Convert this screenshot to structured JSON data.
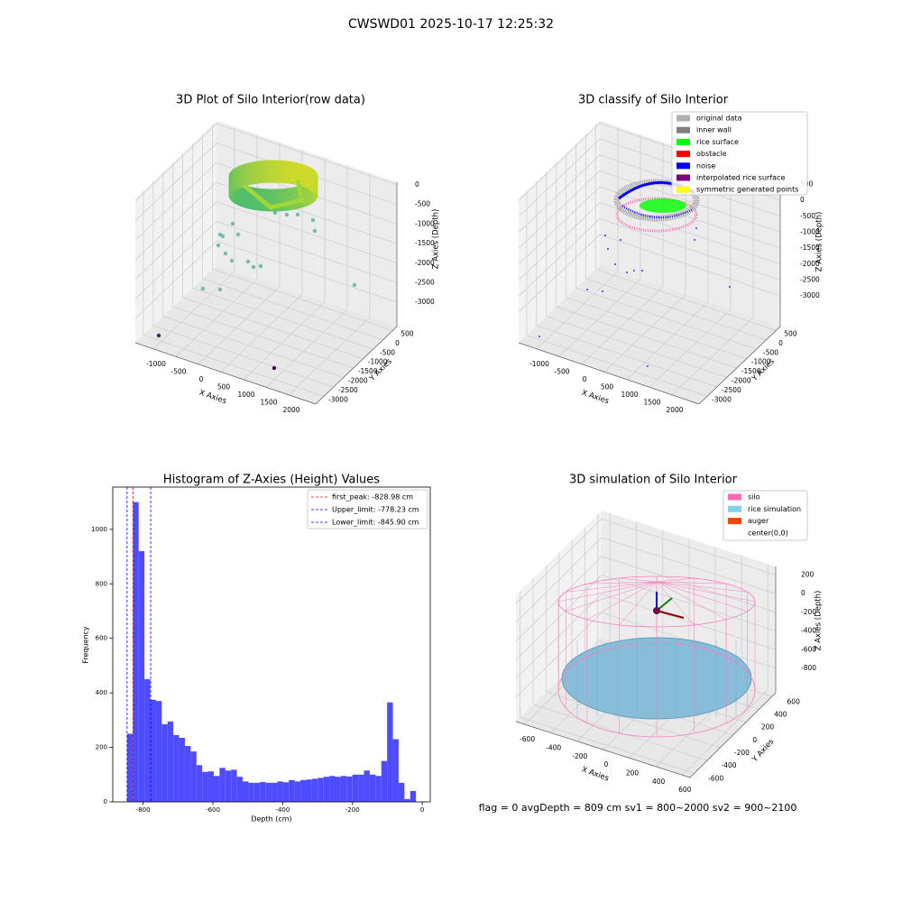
{
  "title": "CWSWD01 2025-10-17 12:25:32",
  "chart_data": [
    {
      "type": "scatter3d",
      "title": "3D Plot of Silo Interior(row data)",
      "xlabel": "X Axies",
      "ylabel": "Y Axies",
      "zlabel": "Z Axies (Depth)",
      "xlim": [
        -1400,
        2600
      ],
      "ylim": [
        -3410,
        710
      ],
      "zlim": [
        -3620,
        70
      ],
      "xticks": [
        -1000,
        -500,
        0,
        500,
        1000,
        1500,
        2000
      ],
      "yticks": [
        -3000,
        -2500,
        -2000,
        -1500,
        -1000,
        -500,
        0,
        500
      ],
      "zticks": [
        -3000,
        -2500,
        -2000,
        -1500,
        -1000,
        -500,
        0
      ],
      "grid": true
    },
    {
      "type": "scatter3d",
      "title": "3D classify of Silo Interior",
      "xlabel": "X Axies",
      "ylabel": "Y Axies",
      "zlabel": "Z Axies (Depth)",
      "xlim": [
        -1400,
        2600
      ],
      "ylim": [
        -3410,
        710
      ],
      "zlim": [
        -3960,
        570
      ],
      "xticks": [
        -1000,
        -500,
        0,
        500,
        1000,
        1500,
        2000
      ],
      "yticks": [
        -3000,
        -2500,
        -2000,
        -1500,
        -1000,
        -500,
        0,
        500
      ],
      "zticks": [
        -3000,
        -2500,
        -2000,
        -1500,
        -1000,
        -500,
        0,
        500
      ],
      "grid": true,
      "legend": [
        {
          "name": "original data",
          "color": "#b0b0b0"
        },
        {
          "name": "inner wall",
          "color": "#808080"
        },
        {
          "name": "rice surface",
          "color": "#00ff00"
        },
        {
          "name": "obstacle",
          "color": "#ff0000"
        },
        {
          "name": "noise",
          "color": "#0000ff"
        },
        {
          "name": "interpolated rice surface",
          "color": "#800080"
        },
        {
          "name": "symmetric generated points",
          "color": "#ffff00"
        }
      ],
      "legend_position": "upper right"
    },
    {
      "type": "histogram",
      "title": "Histogram of Z-Axies (Height) Values",
      "xlabel": "Depth (cm)",
      "ylabel": "Frequency",
      "color": "#4d4dff",
      "bins": [
        -845.9,
        -829.34,
        -812.78,
        -796.22,
        -779.66,
        -763.1,
        -746.54,
        -729.98,
        -713.42,
        -696.86,
        -680.3,
        -663.74,
        -647.18,
        -630.62,
        -614.06,
        -597.5,
        -580.94,
        -564.38,
        -547.82,
        -531.26,
        -514.7,
        -498.14,
        -481.58,
        -465.02,
        -448.46,
        -431.9,
        -415.34,
        -398.78,
        -382.22,
        -365.66,
        -349.1,
        -332.54,
        -315.98,
        -299.42,
        -282.86,
        -266.3,
        -249.74,
        -233.18,
        -216.62,
        -200.06,
        -183.5,
        -166.94,
        -150.38,
        -133.82,
        -117.26,
        -100.7,
        -84.14,
        -67.58,
        -51.02,
        -34.46,
        -17.9
      ],
      "values": [
        250,
        1100,
        920,
        450,
        375,
        370,
        285,
        295,
        245,
        235,
        205,
        185,
        135,
        110,
        112,
        95,
        125,
        115,
        118,
        92,
        75,
        70,
        70,
        73,
        70,
        70,
        75,
        72,
        80,
        75,
        80,
        82,
        85,
        88,
        92,
        95,
        92,
        95,
        93,
        100,
        100,
        115,
        100,
        95,
        150,
        365,
        230,
        70,
        10,
        40
      ],
      "xlim": [
        -887,
        23
      ],
      "ylim": [
        0,
        1155
      ],
      "xticks": [
        -800,
        -600,
        -400,
        -200,
        0
      ],
      "yticks": [
        0,
        200,
        400,
        600,
        800,
        1000
      ],
      "vlines": [
        {
          "name": "first_peak: -828.98 cm",
          "value": -828.98,
          "color": "#ff0000"
        },
        {
          "name": "Upper_limit: -778.23 cm",
          "value": -778.23,
          "color": "#0000ff"
        },
        {
          "name": "Lower_limit: -845.90 cm",
          "value": -845.9,
          "color": "#0000ff"
        }
      ],
      "legend_position": "upper right"
    },
    {
      "type": "surface3d",
      "title": "3D simulation of Silo Interior",
      "xlabel": "X Axies",
      "ylabel": "Y Axies",
      "zlabel": "Z Axies (Depth)",
      "xlim": [
        -666,
        660
      ],
      "ylim": [
        -666,
        660
      ],
      "zlim": [
        -1060,
        290
      ],
      "xticks": [
        -600,
        -400,
        -200,
        0,
        200,
        400,
        600
      ],
      "yticks": [
        -600,
        -400,
        -200,
        0,
        200,
        400,
        600
      ],
      "zticks": [
        -800,
        -600,
        -400,
        -200,
        0,
        200
      ],
      "grid": true,
      "legend": [
        {
          "name": "silo",
          "color": "#ff69b4"
        },
        {
          "name": "rice simulation",
          "color": "#87ceeb"
        },
        {
          "name": "auger",
          "color": "#ff4500"
        },
        {
          "name": "center(0,0)",
          "color": "#ffffff"
        }
      ],
      "legend_position": "upper right",
      "annotation": "flag = 0     avgDepth = 809 cm  sv1 = 800~2000  sv2 = 900~2100"
    }
  ]
}
